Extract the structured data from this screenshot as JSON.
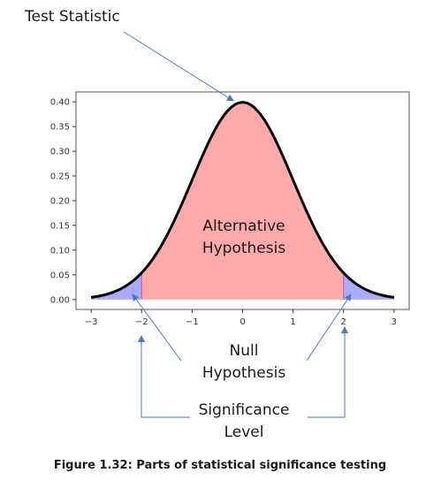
{
  "chart_data": {
    "type": "area",
    "title": "",
    "xlabel": "",
    "ylabel": "",
    "xlim": [
      -3,
      3
    ],
    "ylim": [
      0,
      0.4
    ],
    "x_ticks": [
      "−3",
      "−2",
      "−1",
      "0",
      "1",
      "2",
      "3"
    ],
    "y_ticks": [
      "0.00",
      "0.05",
      "0.10",
      "0.15",
      "0.20",
      "0.25",
      "0.30",
      "0.35",
      "0.40"
    ],
    "series": [
      {
        "x": [
          -3.0,
          -2.5,
          -2.0,
          -1.5,
          -1.0,
          -0.5,
          0.0,
          0.5,
          1.0,
          1.5,
          2.0,
          2.5,
          3.0
        ],
        "values": [
          0.0044,
          0.0175,
          0.054,
          0.1295,
          0.242,
          0.352,
          0.399,
          0.352,
          0.242,
          0.1295,
          0.054,
          0.0175,
          0.0044
        ]
      }
    ],
    "regions": [
      {
        "from": -3,
        "to": -2,
        "color": "#aaaaff"
      },
      {
        "from": -2,
        "to": 2,
        "color": "#ffaaaa"
      },
      {
        "from": 2,
        "to": 3,
        "color": "#aaaaff"
      }
    ],
    "grid": false
  },
  "annotations": {
    "test_statistic": "Test Statistic",
    "alternative_line1": "Alternative",
    "alternative_line2": "Hypothesis",
    "null_line1": "Null",
    "null_line2": "Hypothesis",
    "significance_line1": "Significance",
    "significance_line2": "Level"
  },
  "caption": "Figure 1.32: Parts of statistical significance testing",
  "colors": {
    "center_fill": "#ffaaaa",
    "tail_fill": "#aaaaff",
    "curve": "#000000",
    "arrow": "#4a78c8"
  }
}
